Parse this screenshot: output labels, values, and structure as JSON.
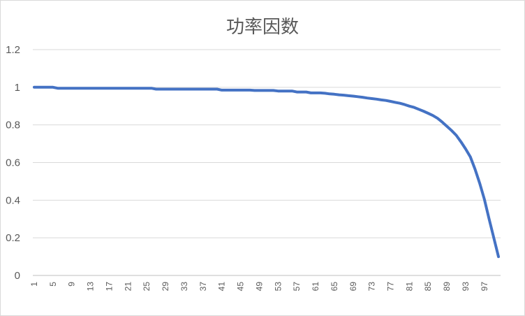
{
  "chart_data": {
    "type": "line",
    "title": "功率因数",
    "xlabel": "",
    "ylabel": "",
    "ylim": [
      0,
      1.2
    ],
    "ytick_labels": [
      "0",
      "0.2",
      "0.4",
      "0.6",
      "0.8",
      "1",
      "1.2"
    ],
    "ytick_values": [
      0,
      0.2,
      0.4,
      0.6,
      0.8,
      1.0,
      1.2
    ],
    "xtick_labels": [
      "1",
      "5",
      "9",
      "13",
      "17",
      "21",
      "25",
      "29",
      "33",
      "37",
      "41",
      "45",
      "49",
      "53",
      "57",
      "61",
      "65",
      "69",
      "73",
      "77",
      "81",
      "85",
      "89",
      "93",
      "97"
    ],
    "x_range": [
      1,
      100
    ],
    "grid": true,
    "legend": "none",
    "color": "#4472c4",
    "series": [
      {
        "x": [
          1,
          2,
          3,
          4,
          5,
          6,
          7,
          8,
          9,
          10,
          11,
          12,
          13,
          14,
          15,
          16,
          17,
          18,
          19,
          20,
          21,
          22,
          23,
          24,
          25,
          26,
          27,
          28,
          29,
          30,
          31,
          32,
          33,
          34,
          35,
          36,
          37,
          38,
          39,
          40,
          41,
          42,
          43,
          44,
          45,
          46,
          47,
          48,
          49,
          50,
          51,
          52,
          53,
          54,
          55,
          56,
          57,
          58,
          59,
          60,
          61,
          62,
          63,
          64,
          65,
          66,
          67,
          68,
          69,
          70,
          71,
          72,
          73,
          74,
          75,
          76,
          77,
          78,
          79,
          80,
          81,
          82,
          83,
          84,
          85,
          86,
          87,
          88,
          89,
          90,
          91,
          92,
          93,
          94,
          95,
          96,
          97,
          98,
          99,
          100
        ],
        "values": [
          1.0,
          1.0,
          1.0,
          1.0,
          1.0,
          0.995,
          0.995,
          0.995,
          0.995,
          0.995,
          0.995,
          0.995,
          0.995,
          0.995,
          0.995,
          0.995,
          0.995,
          0.995,
          0.995,
          0.995,
          0.995,
          0.995,
          0.995,
          0.995,
          0.995,
          0.995,
          0.99,
          0.99,
          0.99,
          0.99,
          0.99,
          0.99,
          0.99,
          0.99,
          0.99,
          0.99,
          0.99,
          0.99,
          0.99,
          0.99,
          0.985,
          0.985,
          0.985,
          0.985,
          0.985,
          0.985,
          0.985,
          0.983,
          0.983,
          0.983,
          0.983,
          0.983,
          0.98,
          0.98,
          0.98,
          0.98,
          0.975,
          0.975,
          0.975,
          0.97,
          0.97,
          0.97,
          0.968,
          0.965,
          0.963,
          0.96,
          0.958,
          0.955,
          0.953,
          0.95,
          0.947,
          0.943,
          0.94,
          0.937,
          0.933,
          0.93,
          0.925,
          0.92,
          0.915,
          0.908,
          0.9,
          0.893,
          0.883,
          0.873,
          0.862,
          0.85,
          0.835,
          0.815,
          0.793,
          0.77,
          0.745,
          0.71,
          0.672,
          0.63,
          0.565,
          0.49,
          0.405,
          0.3,
          0.2,
          0.1
        ]
      }
    ]
  }
}
